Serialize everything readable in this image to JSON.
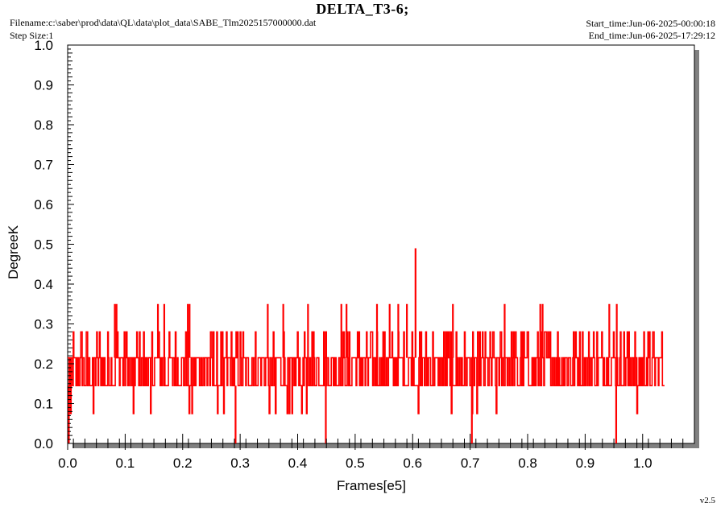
{
  "header": {
    "title": "DELTA_T3-6;",
    "filename": "Filename:c:\\saber\\prod\\data\\QL\\data\\plot_data\\SABE_Tlm2025157000000.dat",
    "step_size": "Step Size:1",
    "start_time": "Start_time:Jun-06-2025-00:00:18",
    "end_time": "End_time:Jun-06-2025-17:29:12",
    "version": "v2.5"
  },
  "colors": {
    "series": "#ff0000",
    "frame": "#000000",
    "shadow": "#808080",
    "background": "#ffffff"
  },
  "chart_data": {
    "type": "line",
    "xlabel": "Frames[e5]",
    "ylabel": "DegreeK",
    "xlim": [
      0.0,
      1.09
    ],
    "ylim": [
      0.0,
      1.0
    ],
    "x_ticks": [
      "0.0",
      "0.1",
      "0.2",
      "0.3",
      "0.4",
      "0.5",
      "0.6",
      "0.7",
      "0.8",
      "0.9",
      "1.0"
    ],
    "y_ticks": [
      "0.0",
      "0.1",
      "0.2",
      "0.3",
      "0.4",
      "0.5",
      "0.6",
      "0.7",
      "0.8",
      "0.9",
      "1.0"
    ],
    "grid": false,
    "series": [
      {
        "x_range": [
          0.0,
          1.037
        ],
        "band_levels": [
          0.145,
          0.215
        ],
        "upper_levels": [
          0.28
        ],
        "lower_levels": [
          0.075
        ],
        "spikes_high": [
          {
            "x": 0.082,
            "y": 0.35
          },
          {
            "x": 0.085,
            "y": 0.35
          },
          {
            "x": 0.157,
            "y": 0.35
          },
          {
            "x": 0.168,
            "y": 0.35
          },
          {
            "x": 0.209,
            "y": 0.35
          },
          {
            "x": 0.212,
            "y": 0.35
          },
          {
            "x": 0.348,
            "y": 0.35
          },
          {
            "x": 0.375,
            "y": 0.35
          },
          {
            "x": 0.418,
            "y": 0.35
          },
          {
            "x": 0.476,
            "y": 0.35
          },
          {
            "x": 0.485,
            "y": 0.35
          },
          {
            "x": 0.538,
            "y": 0.35
          },
          {
            "x": 0.56,
            "y": 0.35
          },
          {
            "x": 0.575,
            "y": 0.35
          },
          {
            "x": 0.59,
            "y": 0.35
          },
          {
            "x": 0.605,
            "y": 0.49
          },
          {
            "x": 0.67,
            "y": 0.35
          },
          {
            "x": 0.76,
            "y": 0.35
          },
          {
            "x": 0.822,
            "y": 0.35
          },
          {
            "x": 0.826,
            "y": 0.35
          },
          {
            "x": 0.942,
            "y": 0.35
          },
          {
            "x": 0.955,
            "y": 0.35
          }
        ],
        "spikes_low": [
          {
            "x": 0.002,
            "y": 0.0
          },
          {
            "x": 0.292,
            "y": 0.0
          },
          {
            "x": 0.449,
            "y": 0.0
          },
          {
            "x": 0.703,
            "y": 0.0
          },
          {
            "x": 0.954,
            "y": 0.0
          }
        ]
      }
    ]
  }
}
